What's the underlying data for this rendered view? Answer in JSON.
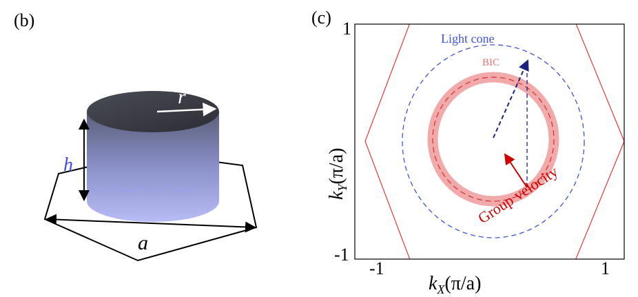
{
  "panel_b": {
    "label": "(b)",
    "radius": "r",
    "height": "h",
    "lattice": "a"
  },
  "panel_c": {
    "label": "(c)",
    "x_axis": {
      "symbol": "k",
      "subscript": "X",
      "unit": "(π/a)",
      "ticks": [
        "-1",
        "1"
      ]
    },
    "y_axis": {
      "symbol": "k",
      "subscript": "Y",
      "unit": "(π/a)",
      "ticks": [
        "1",
        "-1"
      ]
    },
    "annotations": {
      "light_cone": "Light cone",
      "bic": "BIC",
      "group_velocity": "Group velocity"
    }
  }
}
